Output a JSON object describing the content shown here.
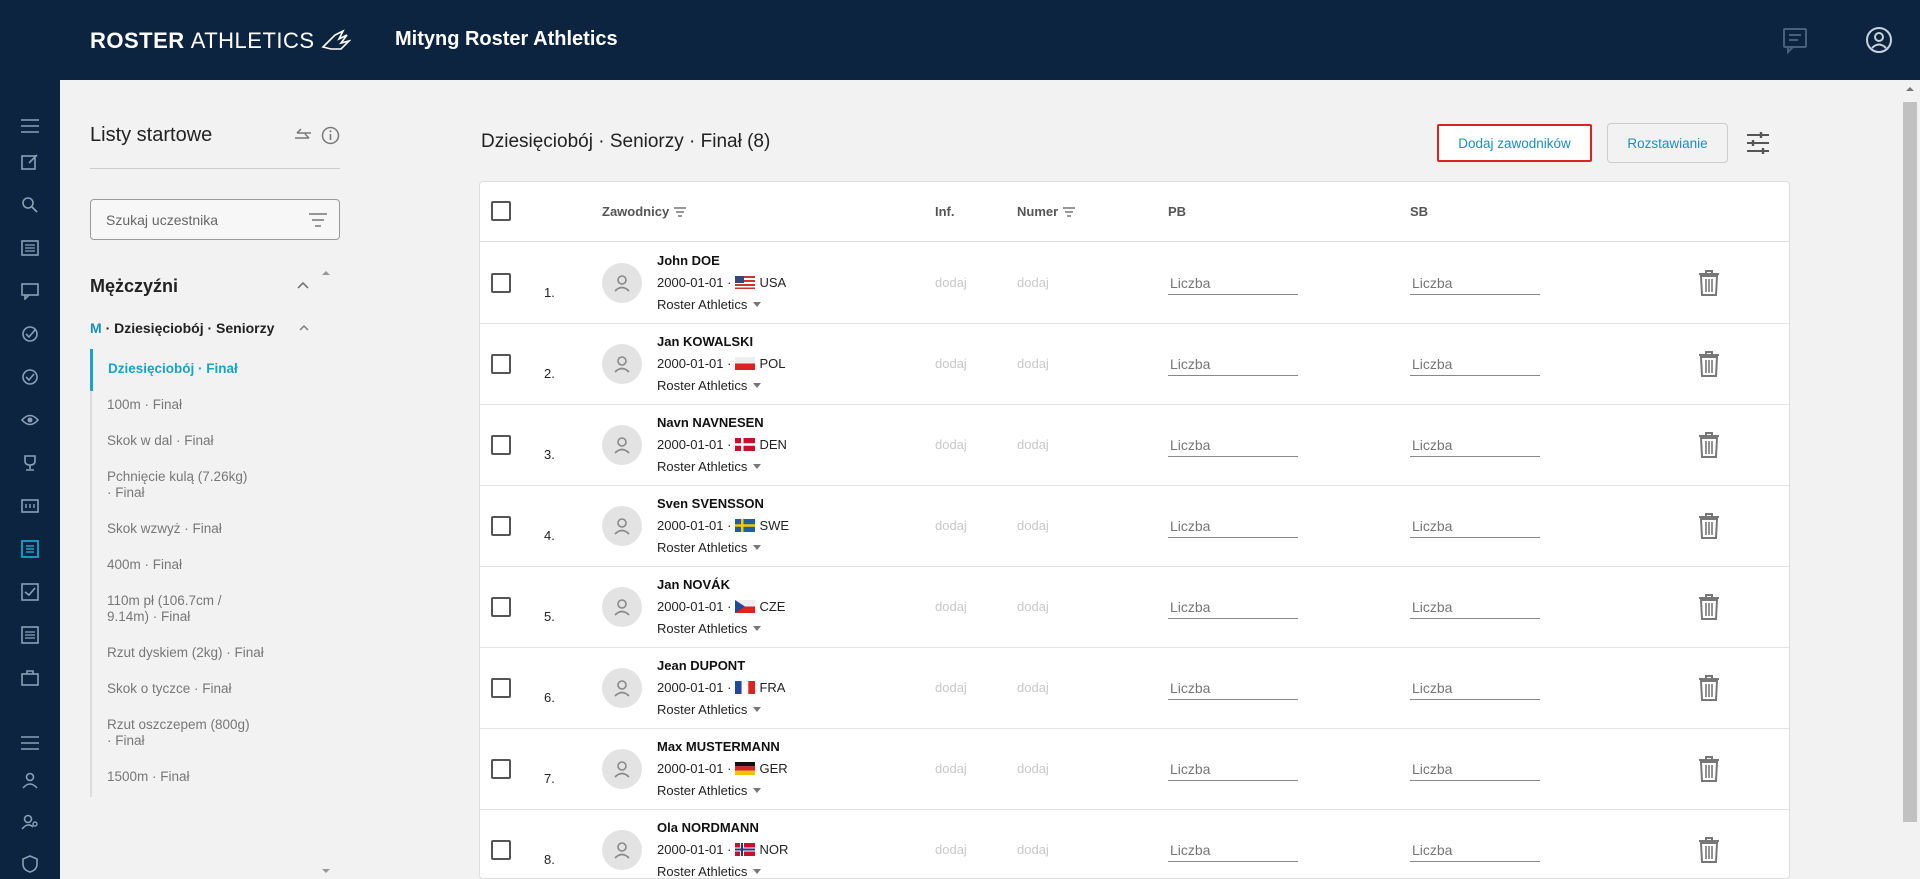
{
  "header": {
    "logo_bold": "ROSTER",
    "logo_light": "ATHLETICS",
    "title": "Mityng Roster Athletics",
    "icons": [
      "chat-icon",
      "account-icon"
    ]
  },
  "rail": {
    "icons": [
      "menu-icon",
      "edit-icon",
      "search-icon",
      "list-icon",
      "chat-icon",
      "check-circle-icon",
      "check-circle-outline-icon",
      "eye-icon",
      "trophy-icon",
      "scoreboard-icon",
      "start-list-icon",
      "checkbox-icon",
      "results-list-icon",
      "briefcase-icon",
      "menu-icon",
      "person-icon",
      "person-search-icon",
      "shield-icon"
    ]
  },
  "sidebar": {
    "title": "Listy startowe",
    "search_placeholder": "Szukaj uczestnika",
    "group": "Mężczyźni",
    "sub_prefix": "M",
    "sub_label": "· Dziesięciobój · Seniorzy",
    "items": [
      "Dziesięciobój · Finał",
      "100m · Finał",
      "Skok w dal · Finał",
      "Pchnięcie kulą (7.26kg) · Finał",
      "Skok wzwyż · Finał",
      "400m · Finał",
      "110m pł (106.7cm / 9.14m) · Finał",
      "Rzut dyskiem (2kg) · Finał",
      "Skok o tyczce · Finał",
      "Rzut oszczepem (800g) · Finał",
      "1500m · Finał"
    ]
  },
  "main": {
    "title": "Dziesięciobój · Seniorzy · Finał (8)",
    "add_button": "Dodaj zawodników",
    "seed_button": "Rozstawianie"
  },
  "table": {
    "headers": {
      "athletes": "Zawodnicy",
      "info": "Inf.",
      "number": "Numer",
      "pb": "PB",
      "sb": "SB"
    },
    "add_text": "dodaj",
    "input_placeholder": "Liczba",
    "rows": [
      {
        "rank": "1.",
        "name": "John DOE",
        "dob": "2000-01-01 ·",
        "country": "USA",
        "club": "Roster Athletics"
      },
      {
        "rank": "2.",
        "name": "Jan KOWALSKI",
        "dob": "2000-01-01 ·",
        "country": "POL",
        "club": "Roster Athletics"
      },
      {
        "rank": "3.",
        "name": "Navn NAVNESEN",
        "dob": "2000-01-01 ·",
        "country": "DEN",
        "club": "Roster Athletics"
      },
      {
        "rank": "4.",
        "name": "Sven SVENSSON",
        "dob": "2000-01-01 ·",
        "country": "SWE",
        "club": "Roster Athletics"
      },
      {
        "rank": "5.",
        "name": "Jan NOVÁK",
        "dob": "2000-01-01 ·",
        "country": "CZE",
        "club": "Roster Athletics"
      },
      {
        "rank": "6.",
        "name": "Jean DUPONT",
        "dob": "2000-01-01 ·",
        "country": "FRA",
        "club": "Roster Athletics"
      },
      {
        "rank": "7.",
        "name": "Max MUSTERMANN",
        "dob": "2000-01-01 ·",
        "country": "GER",
        "club": "Roster Athletics"
      },
      {
        "rank": "8.",
        "name": "Ola NORDMANN",
        "dob": "2000-01-01 ·",
        "country": "NOR",
        "club": "Roster Athletics"
      }
    ]
  },
  "colors": {
    "navy": "#0d2440",
    "accent": "#1aa3c7",
    "highlight_border": "#dd2222"
  }
}
